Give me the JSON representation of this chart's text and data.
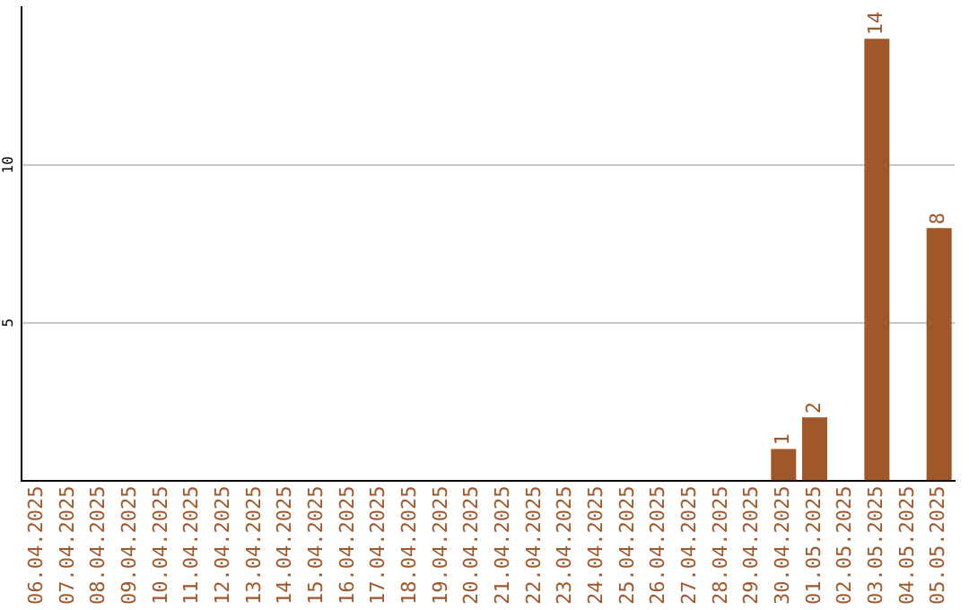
{
  "chart_data": {
    "type": "bar",
    "categories": [
      "06.04.2025",
      "07.04.2025",
      "08.04.2025",
      "09.04.2025",
      "10.04.2025",
      "11.04.2025",
      "12.04.2025",
      "13.04.2025",
      "14.04.2025",
      "15.04.2025",
      "16.04.2025",
      "17.04.2025",
      "18.04.2025",
      "19.04.2025",
      "20.04.2025",
      "21.04.2025",
      "22.04.2025",
      "23.04.2025",
      "24.04.2025",
      "25.04.2025",
      "26.04.2025",
      "27.04.2025",
      "28.04.2025",
      "29.04.2025",
      "30.04.2025",
      "01.05.2025",
      "02.05.2025",
      "03.05.2025",
      "04.05.2025",
      "05.05.2025"
    ],
    "values": [
      0,
      0,
      0,
      0,
      0,
      0,
      0,
      0,
      0,
      0,
      0,
      0,
      0,
      0,
      0,
      0,
      0,
      0,
      0,
      0,
      0,
      0,
      0,
      0,
      1,
      2,
      0,
      14,
      0,
      8
    ],
    "value_labels": [
      null,
      null,
      null,
      null,
      null,
      null,
      null,
      null,
      null,
      null,
      null,
      null,
      null,
      null,
      null,
      null,
      null,
      null,
      null,
      null,
      null,
      null,
      null,
      null,
      "1",
      "2",
      null,
      "14",
      null,
      "8"
    ],
    "color": "#a0572a",
    "ylim": [
      0,
      15
    ],
    "yticks": [
      5,
      10
    ],
    "grid": "y",
    "legend": false
  }
}
